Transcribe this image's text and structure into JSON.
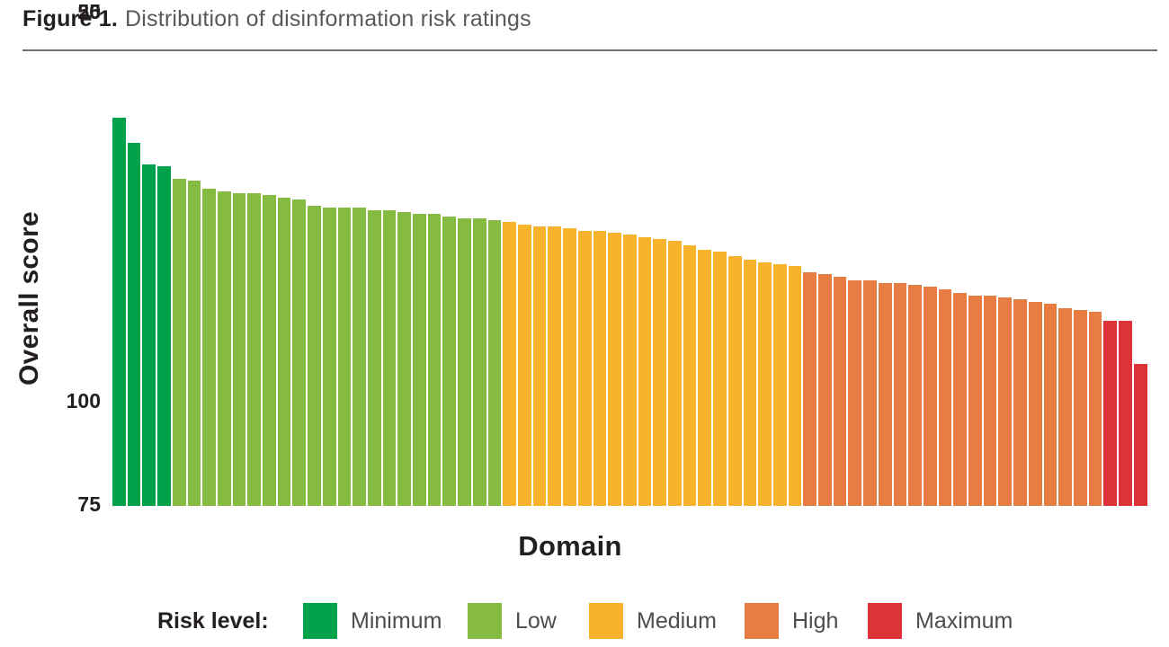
{
  "figure": {
    "label": "Figure 1.",
    "caption": "Distribution of disinformation risk ratings"
  },
  "chart_data": {
    "type": "bar",
    "title": "Figure 1. Distribution of disinformation risk ratings",
    "xlabel": "Domain",
    "ylabel": "Overall score",
    "ylim": [
      0,
      100
    ],
    "yticks": [
      "100",
      "75",
      "50",
      "25",
      "0"
    ],
    "grid": false,
    "bar_order": "sorted descending, one bar per domain",
    "legend": {
      "title": "Risk level:",
      "position": "bottom"
    },
    "series": [
      {
        "name": "Minimum",
        "color": "#00A14B",
        "values": [
          93,
          87,
          82,
          81.5
        ]
      },
      {
        "name": "Low",
        "color": "#85BB40",
        "values": [
          78.5,
          78,
          76,
          75.5,
          75,
          75,
          74.5,
          74,
          73.5,
          72,
          71.5,
          71.5,
          71.5,
          71,
          71,
          70.5,
          70,
          70,
          69.5,
          69,
          69,
          68.5
        ]
      },
      {
        "name": "Medium",
        "color": "#F7B32B",
        "values": [
          68,
          67.5,
          67,
          67,
          66.5,
          66,
          66,
          65.5,
          65,
          64.5,
          64,
          63.5,
          62.5,
          61.5,
          61,
          60,
          59,
          58.5,
          58,
          57.5
        ]
      },
      {
        "name": "High",
        "color": "#E87D43",
        "values": [
          56,
          55.5,
          55,
          54,
          54,
          53.5,
          53.5,
          53,
          52.5,
          52,
          51,
          50.5,
          50.5,
          50,
          49.5,
          49,
          48.5,
          47.5,
          47,
          46.5
        ]
      },
      {
        "name": "Maximum",
        "color": "#DC3238",
        "values": [
          44.5,
          44.5,
          34
        ]
      }
    ]
  }
}
